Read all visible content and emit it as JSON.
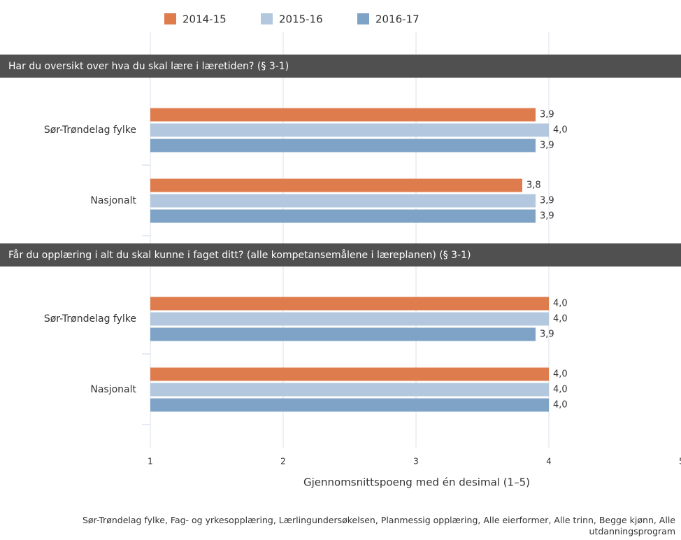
{
  "chart_data": {
    "type": "bar",
    "orientation": "horizontal",
    "xlabel": "Gjennomsnittspoeng med én desimal (1–5)",
    "note": "Sør-Trøndelag fylke, Fag- og yrkesopplæring, Lærlingundersøkelsen, Planmessig opplæring, Alle eierformer, Alle trinn, Begge kjønn, Alle utdanningsprogram",
    "xlim": [
      1,
      5
    ],
    "xticks": [
      1,
      2,
      3,
      4,
      5
    ],
    "grid": true,
    "series": [
      {
        "name": "2014-15",
        "color": "#df7c4d"
      },
      {
        "name": "2015-16",
        "color": "#b3c8de"
      },
      {
        "name": "2016-17",
        "color": "#7fa3c7"
      }
    ],
    "panels": [
      {
        "title": "Har du oversikt over hva du skal lære i læretiden? (§ 3-1)",
        "categories": [
          "Sør-Trøndelag fylke",
          "Nasjonalt"
        ],
        "values": [
          [
            3.9,
            4.0,
            3.9
          ],
          [
            3.8,
            3.9,
            3.9
          ]
        ],
        "value_labels": [
          [
            "3,9",
            "4,0",
            "3,9"
          ],
          [
            "3,8",
            "3,9",
            "3,9"
          ]
        ]
      },
      {
        "title": "Får du opplæring i alt du skal kunne i faget ditt? (alle kompetansemålene i læreplanen) (§ 3-1)",
        "categories": [
          "Sør-Trøndelag fylke",
          "Nasjonalt"
        ],
        "values": [
          [
            4.0,
            4.0,
            3.9
          ],
          [
            4.0,
            4.0,
            4.0
          ]
        ],
        "value_labels": [
          [
            "4,0",
            "4,0",
            "3,9"
          ],
          [
            "4,0",
            "4,0",
            "4,0"
          ]
        ]
      }
    ]
  }
}
